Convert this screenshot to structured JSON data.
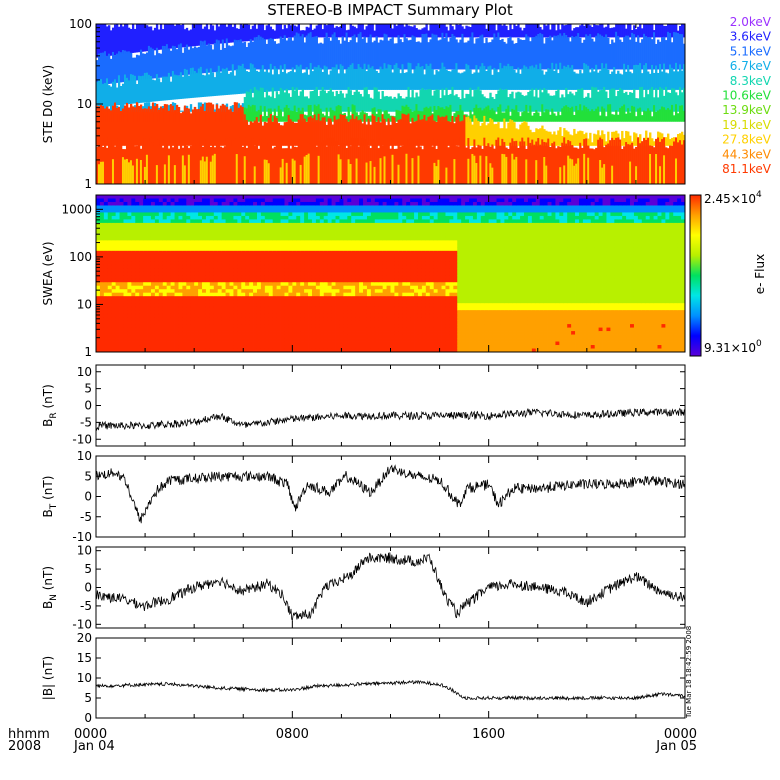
{
  "title": "STEREO-B IMPACT Summary Plot",
  "footer": {
    "hhmm_label": "hhmm",
    "year_label": "2008",
    "time_ticks": [
      "0000",
      "0800",
      "1600",
      "0000"
    ],
    "date_ticks": [
      "Jan 04",
      "",
      "",
      "Jan 05"
    ],
    "generated_stamp": "Tue Mar 18 18:42:59 2008"
  },
  "chart_data": [
    {
      "type": "line",
      "panel": "ste",
      "ylabel": "STE D0 (keV)",
      "yscale": "log",
      "ylim": [
        1,
        100
      ],
      "yticks": [
        "1",
        "10",
        "100"
      ],
      "xlim_hours": [
        0,
        24
      ],
      "legend_placement": "right",
      "channels": [
        {
          "name": "2.0keV",
          "color": "#9b30ff"
        },
        {
          "name": "3.6keV",
          "color": "#2020ff"
        },
        {
          "name": "5.1keV",
          "color": "#1a6cff"
        },
        {
          "name": "6.7keV",
          "color": "#10aee8"
        },
        {
          "name": "8.3keV",
          "color": "#12d6b0"
        },
        {
          "name": "10.6keV",
          "color": "#22e03a"
        },
        {
          "name": "13.9keV",
          "color": "#6cdc10"
        },
        {
          "name": "19.1keV",
          "color": "#d8dc00"
        },
        {
          "name": "27.8keV",
          "color": "#ffd000"
        },
        {
          "name": "44.3keV",
          "color": "#ff8a00"
        },
        {
          "name": "81.1keV",
          "color": "#ff3a00"
        }
      ]
    },
    {
      "type": "heatmap",
      "panel": "swea",
      "ylabel": "SWEA (eV)",
      "yscale": "log",
      "ylim": [
        1,
        2000
      ],
      "yticks": [
        "1",
        "10",
        "100",
        "1000"
      ],
      "xlim_hours": [
        0,
        24
      ],
      "colorbar_label": "e- Flux",
      "colorbar_max": "2.45×10",
      "colorbar_max_exp": "4",
      "colorbar_min": "9.31×10",
      "colorbar_min_exp": "0",
      "colormap": [
        "#5a00d8",
        "#0000ff",
        "#0090ff",
        "#00e6e6",
        "#00e060",
        "#b8f000",
        "#ffff00",
        "#ffa000",
        "#ff2a00"
      ]
    },
    {
      "type": "line",
      "panel": "br",
      "ylabel": "B",
      "ylabel_sub": "R",
      "ylabel_unit": "(nT)",
      "ylim": [
        -12,
        12
      ],
      "yticks": [
        -10,
        -5,
        0,
        5,
        10
      ],
      "xlim_hours": [
        0,
        24
      ],
      "segments": [
        [
          0,
          -6
        ],
        [
          2,
          -6
        ],
        [
          4,
          -5
        ],
        [
          5,
          -3
        ],
        [
          6,
          -6
        ],
        [
          8,
          -4
        ],
        [
          10,
          -3
        ],
        [
          12,
          -3
        ],
        [
          14,
          -3
        ],
        [
          16,
          -3
        ],
        [
          18,
          -2
        ],
        [
          20,
          -3
        ],
        [
          22,
          -2
        ],
        [
          24,
          -2
        ]
      ],
      "noise": 1.6
    },
    {
      "type": "line",
      "panel": "bt",
      "ylabel": "B",
      "ylabel_sub": "T",
      "ylabel_unit": "(nT)",
      "ylim": [
        -10,
        10
      ],
      "yticks": [
        -10,
        -5,
        0,
        5,
        10
      ],
      "xlim_hours": [
        0,
        24
      ],
      "segments": [
        [
          0,
          5
        ],
        [
          0.8,
          6
        ],
        [
          1.2,
          4
        ],
        [
          1.8,
          -6
        ],
        [
          2.4,
          1
        ],
        [
          3,
          4
        ],
        [
          5,
          5
        ],
        [
          7,
          5
        ],
        [
          7.8,
          3
        ],
        [
          8.1,
          -3
        ],
        [
          8.6,
          3
        ],
        [
          9.5,
          1
        ],
        [
          10.2,
          5
        ],
        [
          11.2,
          1
        ],
        [
          12,
          7
        ],
        [
          13,
          5
        ],
        [
          14,
          4
        ],
        [
          14.8,
          -2
        ],
        [
          15.1,
          2
        ],
        [
          16,
          3
        ],
        [
          16.4,
          -2
        ],
        [
          17,
          2
        ],
        [
          18,
          2
        ],
        [
          19.5,
          3
        ],
        [
          21,
          3
        ],
        [
          22.5,
          4
        ],
        [
          24,
          3
        ]
      ],
      "noise": 1.8
    },
    {
      "type": "line",
      "panel": "bn",
      "ylabel": "B",
      "ylabel_sub": "N",
      "ylabel_unit": "(nT)",
      "ylim": [
        -11,
        11
      ],
      "yticks": [
        -10,
        -5,
        0,
        5,
        10
      ],
      "xlim_hours": [
        0,
        24
      ],
      "segments": [
        [
          0,
          -2
        ],
        [
          1,
          -3
        ],
        [
          2,
          -5
        ],
        [
          3,
          -3
        ],
        [
          4,
          0
        ],
        [
          5,
          2
        ],
        [
          6,
          -1
        ],
        [
          7,
          1
        ],
        [
          7.6,
          -2
        ],
        [
          8,
          -8
        ],
        [
          8.8,
          -7
        ],
        [
          9.3,
          0
        ],
        [
          10,
          2
        ],
        [
          10.5,
          4
        ],
        [
          11,
          8
        ],
        [
          12,
          8
        ],
        [
          13,
          7
        ],
        [
          13.6,
          8
        ],
        [
          14.2,
          -2
        ],
        [
          14.7,
          -7
        ],
        [
          15.2,
          -4
        ],
        [
          16,
          0
        ],
        [
          17,
          1
        ],
        [
          18,
          0
        ],
        [
          19,
          -1
        ],
        [
          20,
          -4
        ],
        [
          21,
          0
        ],
        [
          22,
          3
        ],
        [
          23,
          -1
        ],
        [
          24,
          -3
        ]
      ],
      "noise": 2.0
    },
    {
      "type": "line",
      "panel": "bmag",
      "ylabel": "|B| (nT)",
      "ylim": [
        0,
        20
      ],
      "yticks": [
        0,
        5,
        10,
        15,
        20
      ],
      "xlim_hours": [
        0,
        24
      ],
      "segments": [
        [
          0,
          8
        ],
        [
          3,
          8.5
        ],
        [
          5,
          7.5
        ],
        [
          7,
          7
        ],
        [
          8,
          7
        ],
        [
          9,
          8
        ],
        [
          11,
          8.5
        ],
        [
          13,
          9
        ],
        [
          14,
          8.5
        ],
        [
          14.5,
          7
        ],
        [
          15,
          5
        ],
        [
          16,
          5
        ],
        [
          18,
          5
        ],
        [
          20,
          5
        ],
        [
          22,
          5
        ],
        [
          23,
          6
        ],
        [
          24,
          5.5
        ]
      ],
      "noise": 0.6
    }
  ]
}
